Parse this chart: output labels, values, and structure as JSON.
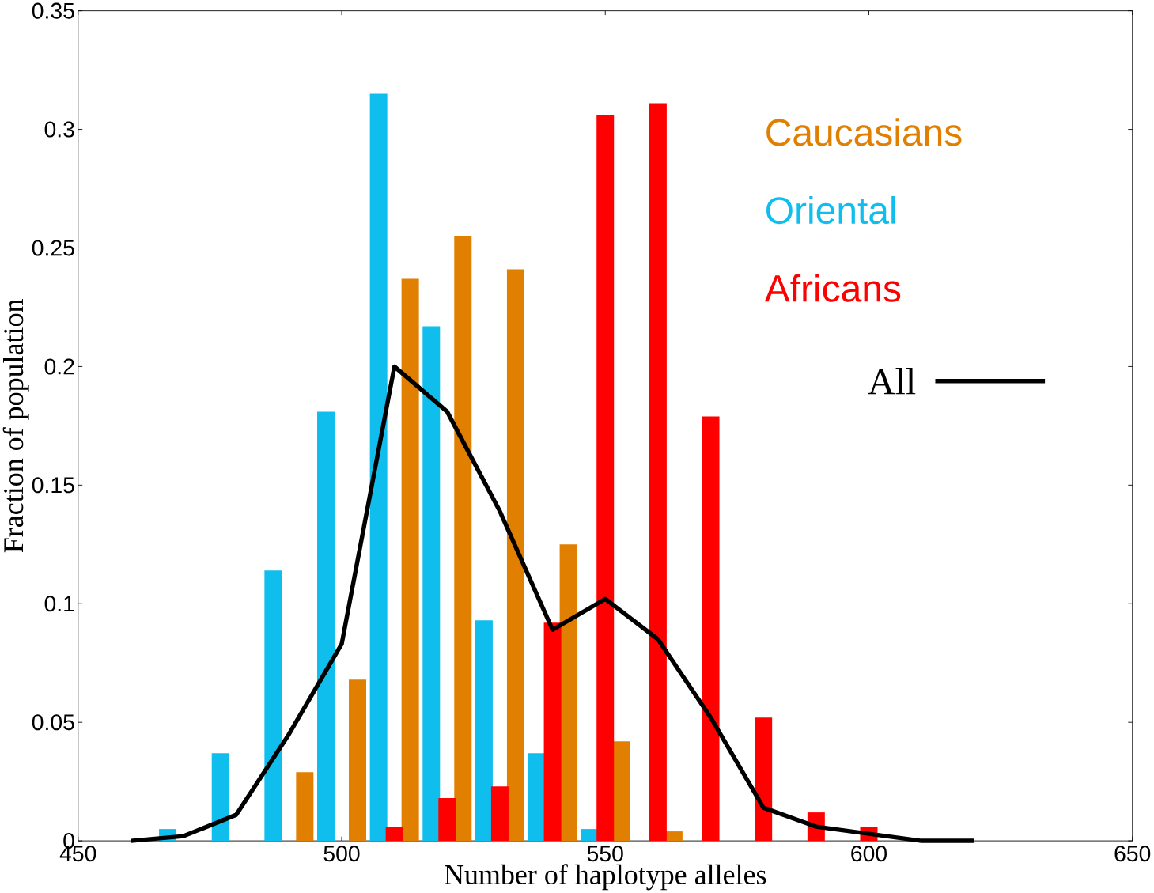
{
  "chart_data": {
    "type": "bar",
    "xlabel": "Number of haplotype alleles",
    "ylabel": "Fraction of population",
    "x": [
      460,
      470,
      480,
      490,
      500,
      510,
      520,
      530,
      540,
      550,
      560,
      570,
      580,
      590,
      600,
      610,
      620
    ],
    "series": [
      {
        "name": "Caucasians",
        "color": "#e07f00",
        "values": [
          0,
          0,
          0,
          0.029,
          0.068,
          0.237,
          0.255,
          0.241,
          0.125,
          0.042,
          0.004,
          0,
          0,
          0,
          0,
          0,
          0
        ]
      },
      {
        "name": "Oriental",
        "color": "#10beee",
        "values": [
          0,
          0.005,
          0.037,
          0.114,
          0.181,
          0.315,
          0.217,
          0.093,
          0.037,
          0.005,
          0,
          0,
          0,
          0,
          0,
          0,
          0
        ]
      },
      {
        "name": "Africans",
        "color": "#ff0000",
        "values": [
          0,
          0,
          0,
          0,
          0,
          0.006,
          0.018,
          0.023,
          0.092,
          0.306,
          0.311,
          0.179,
          0.052,
          0.012,
          0.006,
          0,
          0
        ]
      },
      {
        "name": "All",
        "type": "line",
        "color": "#000000",
        "values": [
          0,
          0.002,
          0.011,
          0.045,
          0.083,
          0.2,
          0.181,
          0.139,
          0.089,
          0.102,
          0.085,
          0.052,
          0.014,
          0.006,
          0.003,
          0,
          0
        ]
      }
    ],
    "xlim": [
      450,
      650
    ],
    "xticks": [
      450,
      500,
      550,
      600,
      650
    ],
    "ylim": [
      0,
      0.35
    ],
    "yticks": [
      0,
      0.05,
      0.1,
      0.15,
      0.2,
      0.25,
      0.3,
      0.35
    ],
    "legend": "top right"
  }
}
